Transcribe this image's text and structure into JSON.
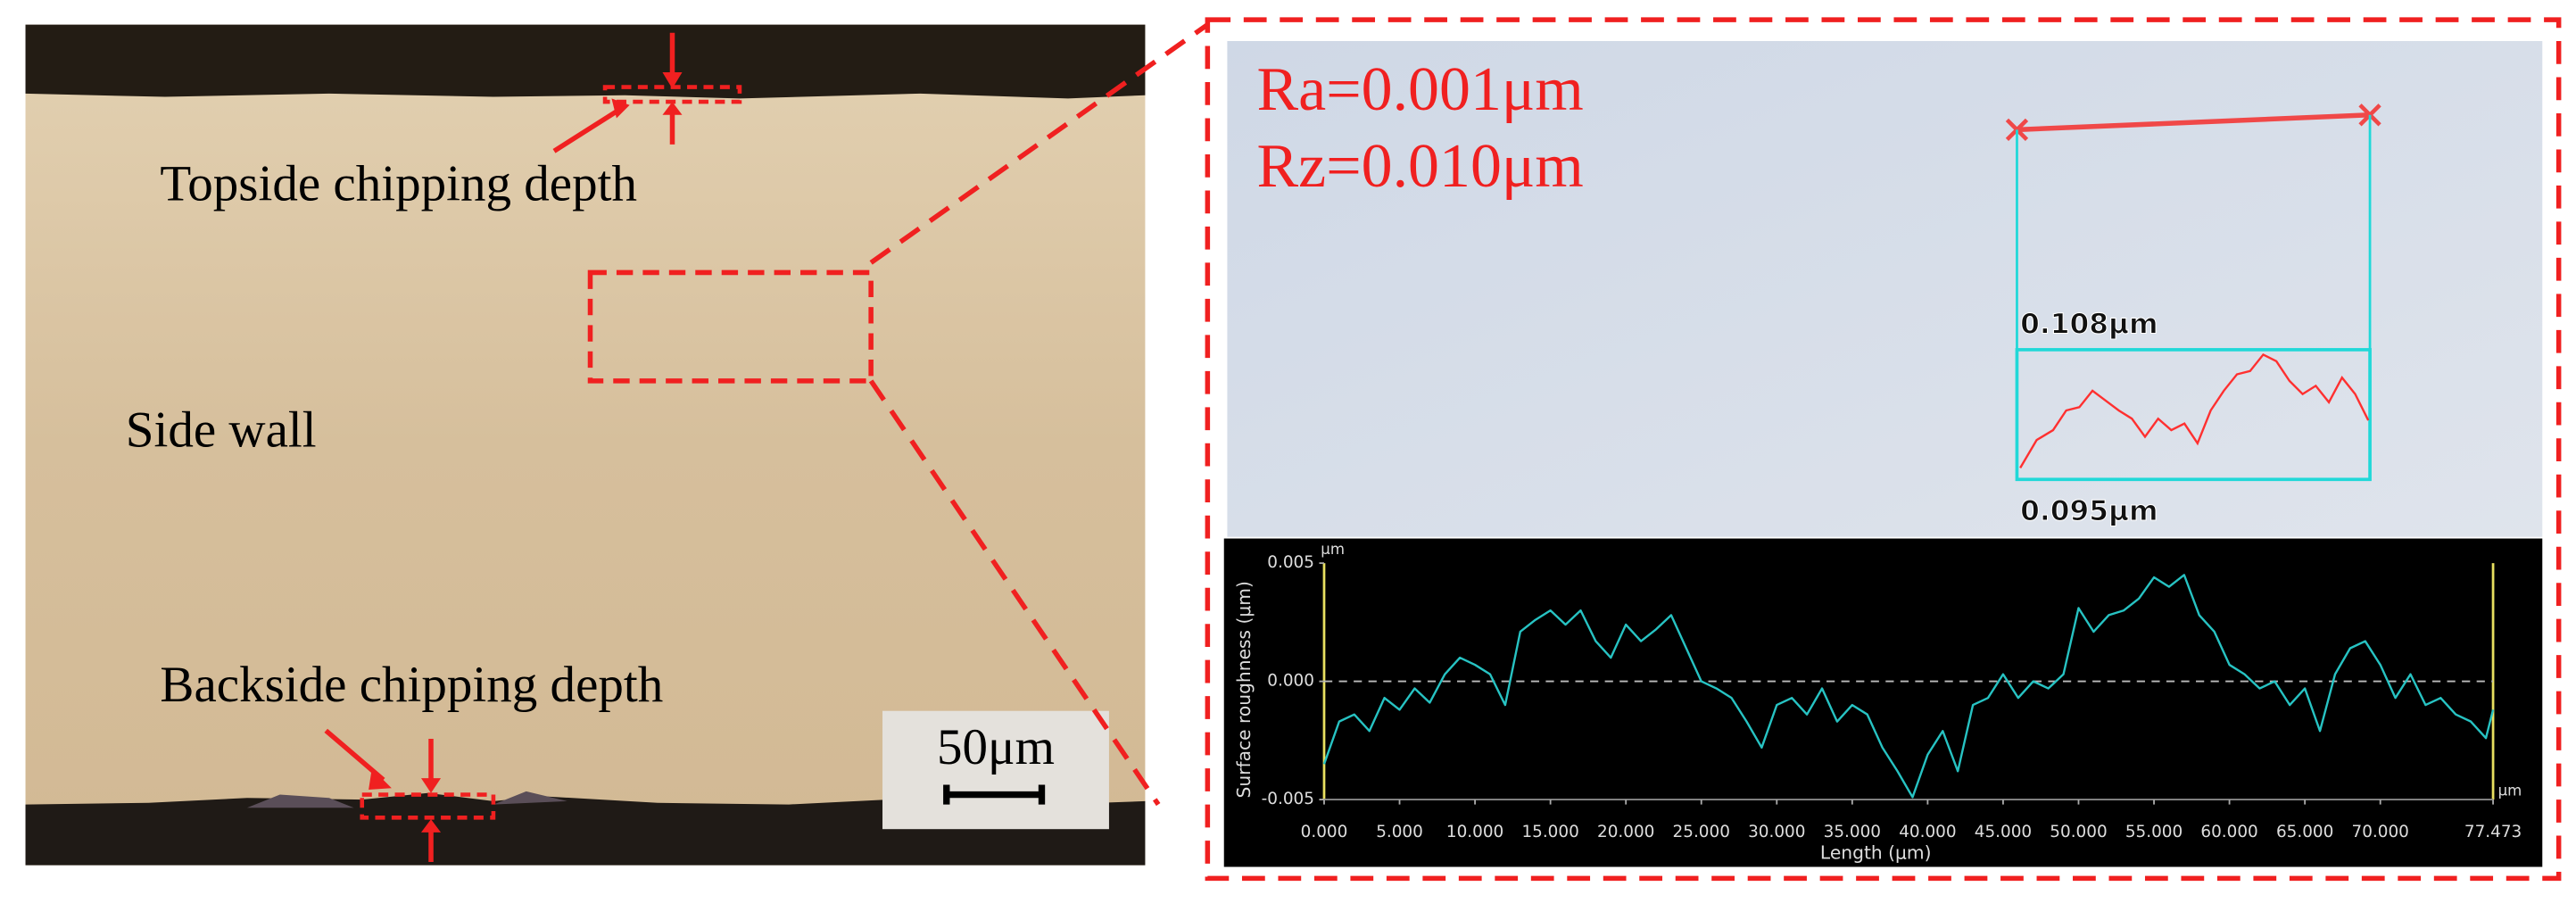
{
  "micrograph": {
    "labels": [
      "Topside chipping depth",
      "Side wall",
      "Backside chipping depth"
    ],
    "scale_bar": "50μm"
  },
  "inset": {
    "ra": "Ra=0.001μm",
    "rz": "Rz=0.010μm",
    "profile_max": "0.108μm",
    "profile_min": "0.095μm"
  },
  "chart_data": {
    "type": "line",
    "x_label": "Length (μm)",
    "y_label": "Surface roughness (μm)",
    "y_unit": "μm",
    "x_unit": "μm",
    "x": [
      0,
      1,
      2,
      3,
      4,
      5,
      6,
      7,
      8,
      9,
      10,
      11,
      12,
      13,
      14,
      15,
      16,
      17,
      18,
      19,
      20,
      21,
      22,
      23,
      24,
      25,
      26,
      27,
      28,
      29,
      30,
      31,
      32,
      33,
      34,
      35,
      36,
      37,
      38,
      39,
      40,
      41,
      42,
      43,
      44,
      45,
      46,
      47,
      48,
      49,
      50,
      51,
      52,
      53,
      54,
      55,
      56,
      57,
      58,
      59,
      60,
      61,
      62,
      63,
      64,
      65,
      66,
      67,
      68,
      69,
      70,
      71,
      72,
      73,
      74,
      75,
      76,
      77,
      77.473
    ],
    "series": [
      {
        "color": "#27c3c3",
        "values": [
          -0.0035,
          -0.0017,
          -0.0014,
          -0.0021,
          -0.0007,
          -0.0012,
          -0.0003,
          -0.0009,
          0.0003,
          0.001,
          0.0007,
          0.0003,
          -0.001,
          0.0021,
          0.0026,
          0.003,
          0.0024,
          0.003,
          0.0017,
          0.001,
          0.0024,
          0.0017,
          0.0022,
          0.0028,
          0.0014,
          0,
          -0.0003,
          -0.0007,
          -0.0017,
          -0.0028,
          -0.001,
          -0.0007,
          -0.0014,
          -0.0003,
          -0.0017,
          -0.001,
          -0.0014,
          -0.0028,
          -0.0038,
          -0.0049,
          -0.0031,
          -0.0021,
          -0.0038,
          -0.001,
          -0.0007,
          0.0003,
          -0.0007,
          0,
          -0.0003,
          0.0003,
          0.0031,
          0.0021,
          0.0028,
          0.003,
          0.0035,
          0.0044,
          0.004,
          0.0045,
          0.0028,
          0.0021,
          0.0007,
          0.0003,
          -0.0003,
          0,
          -0.001,
          -0.0003,
          -0.0021,
          0.0003,
          0.0014,
          0.0017,
          0.0007,
          -0.0007,
          0.0003,
          -0.001,
          -0.0007,
          -0.0014,
          -0.0017,
          -0.0024,
          -0.0012
        ]
      }
    ],
    "xlim": [
      0,
      77.473
    ],
    "ylim": [
      -0.005,
      0.005
    ],
    "yticks": [
      0.005,
      {
        "value": 0,
        "label": "0.000"
      },
      -0.005
    ],
    "xticks": [
      {
        "value": 0,
        "label": "0.000"
      },
      {
        "value": 5,
        "label": "5.000"
      },
      {
        "value": 10,
        "label": "10.000"
      },
      {
        "value": 15,
        "label": "15.000"
      },
      {
        "value": 20,
        "label": "20.000"
      },
      {
        "value": 25,
        "label": "25.000"
      },
      {
        "value": 30,
        "label": "30.000"
      },
      {
        "value": 35,
        "label": "35.000"
      },
      {
        "value": 40,
        "label": "40.000"
      },
      {
        "value": 45,
        "label": "45.000"
      },
      {
        "value": 50,
        "label": "50.000"
      },
      {
        "value": 55,
        "label": "55.000"
      },
      {
        "value": 60,
        "label": "60.000"
      },
      {
        "value": 65,
        "label": "65.000"
      },
      {
        "value": 70,
        "label": "70.000"
      },
      77.473
    ],
    "zero_line": true
  }
}
